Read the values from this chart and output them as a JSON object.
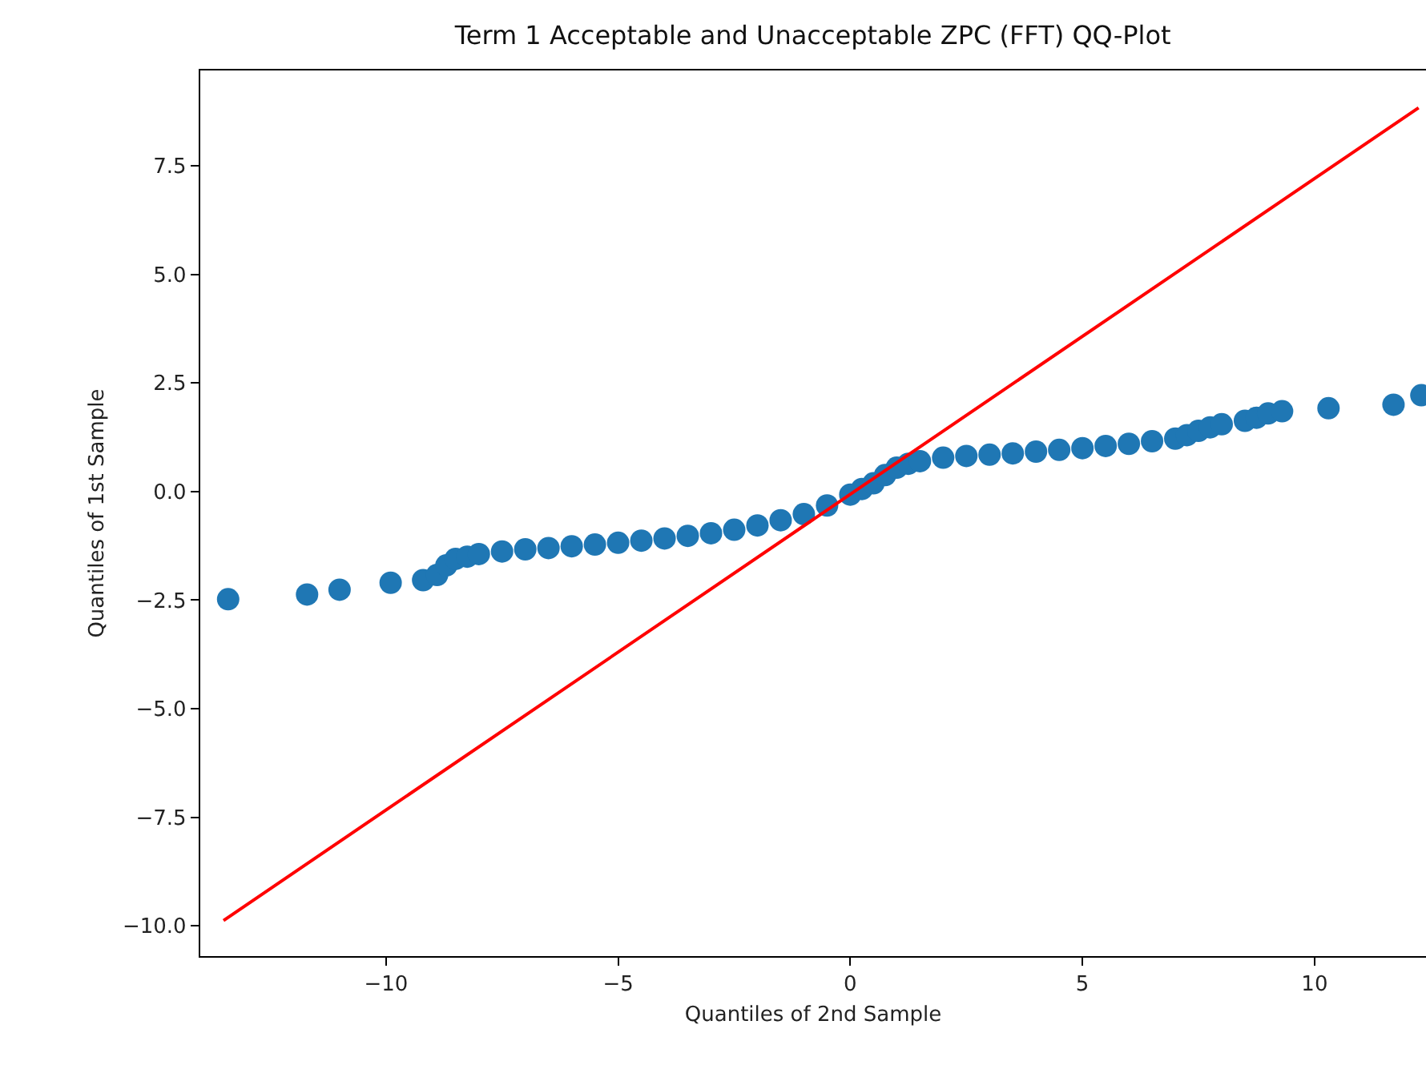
{
  "chart_data": {
    "type": "scatter",
    "title": "Term 1 Acceptable and Unacceptable ZPC (FFT) QQ-Plot",
    "xlabel": "Quantiles of 2nd Sample",
    "ylabel": "Quantiles of 1st Sample",
    "xlim": [
      -14.0,
      12.4
    ],
    "ylim": [
      -10.7,
      9.7
    ],
    "xticks": [
      {
        "value": -10,
        "label": "−10"
      },
      {
        "value": -5,
        "label": "−5"
      },
      0,
      5,
      10
    ],
    "yticks": [
      {
        "value": -10,
        "label": "−10.0"
      },
      {
        "value": -7.5,
        "label": "−7.5"
      },
      {
        "value": -5,
        "label": "−5.0"
      },
      {
        "value": -2.5,
        "label": "−2.5"
      },
      {
        "value": 0,
        "label": "0.0"
      },
      {
        "value": 2.5,
        "label": "2.5"
      },
      {
        "value": 5,
        "label": "5.0"
      },
      {
        "value": 7.5,
        "label": "7.5"
      }
    ],
    "marker": "circle",
    "series": [
      {
        "color": "#1f77b4",
        "x": [
          -13.4,
          -11.7,
          -11.0,
          -9.9,
          -9.2,
          -8.9,
          -8.7,
          -8.5,
          -8.25,
          -8.0,
          -7.5,
          -7.0,
          -6.5,
          -6.0,
          -5.5,
          -5.0,
          -4.5,
          -4.0,
          -3.5,
          -3.0,
          -2.5,
          -2.0,
          -1.5,
          -1.0,
          -0.5,
          0.0,
          0.25,
          0.5,
          0.75,
          1.0,
          1.25,
          1.5,
          2.0,
          2.5,
          3.0,
          3.5,
          4.0,
          4.5,
          5.0,
          5.5,
          6.0,
          6.5,
          7.0,
          7.25,
          7.5,
          7.75,
          8.0,
          8.5,
          8.75,
          9.0,
          9.3,
          10.3,
          11.7,
          12.3
        ],
        "values": [
          -2.48,
          -2.37,
          -2.26,
          -2.1,
          -2.04,
          -1.92,
          -1.7,
          -1.55,
          -1.5,
          -1.44,
          -1.38,
          -1.33,
          -1.3,
          -1.26,
          -1.22,
          -1.18,
          -1.13,
          -1.08,
          -1.02,
          -0.96,
          -0.88,
          -0.78,
          -0.66,
          -0.52,
          -0.32,
          -0.07,
          0.06,
          0.19,
          0.38,
          0.55,
          0.64,
          0.7,
          0.78,
          0.82,
          0.85,
          0.88,
          0.92,
          0.96,
          1.0,
          1.05,
          1.1,
          1.16,
          1.22,
          1.3,
          1.4,
          1.48,
          1.55,
          1.63,
          1.7,
          1.8,
          1.85,
          1.92,
          2.0,
          2.22
        ]
      },
      {
        "type": "line",
        "color": "#ff0000",
        "x": [
          -13.5,
          12.24
        ],
        "values": [
          -9.88,
          8.84
        ],
        "marker": "none",
        "line_style": "solid"
      }
    ]
  }
}
